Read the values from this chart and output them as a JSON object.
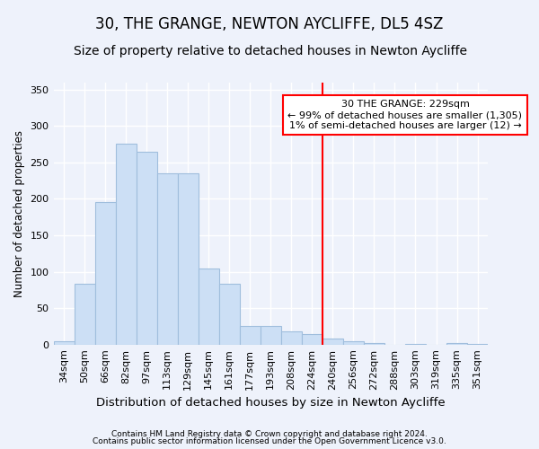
{
  "title": "30, THE GRANGE, NEWTON AYCLIFFE, DL5 4SZ",
  "subtitle": "Size of property relative to detached houses in Newton Aycliffe",
  "xlabel": "Distribution of detached houses by size in Newton Aycliffe",
  "ylabel": "Number of detached properties",
  "footer_line1": "Contains HM Land Registry data © Crown copyright and database right 2024.",
  "footer_line2": "Contains public sector information licensed under the Open Government Licence v3.0.",
  "bar_labels": [
    "34sqm",
    "50sqm",
    "66sqm",
    "82sqm",
    "97sqm",
    "113sqm",
    "129sqm",
    "145sqm",
    "161sqm",
    "177sqm",
    "193sqm",
    "208sqm",
    "224sqm",
    "240sqm",
    "256sqm",
    "272sqm",
    "288sqm",
    "303sqm",
    "319sqm",
    "335sqm",
    "351sqm"
  ],
  "bar_values": [
    5,
    83,
    196,
    276,
    265,
    235,
    235,
    104,
    83,
    25,
    25,
    18,
    14,
    8,
    4,
    2,
    0,
    1,
    0,
    2,
    1
  ],
  "bar_color": "#ccdff5",
  "bar_edgecolor": "#a0bedd",
  "bg_color": "#eef2fb",
  "grid_color": "#ffffff",
  "vline_color": "red",
  "annotation_text": "30 THE GRANGE: 229sqm\n← 99% of detached houses are smaller (1,305)\n1% of semi-detached houses are larger (12) →",
  "ylim": [
    0,
    360
  ],
  "yticks": [
    0,
    50,
    100,
    150,
    200,
    250,
    300,
    350
  ],
  "title_fontsize": 12,
  "subtitle_fontsize": 10,
  "xlabel_fontsize": 9.5,
  "ylabel_fontsize": 8.5,
  "tick_fontsize": 8,
  "annotation_fontsize": 8,
  "footer_fontsize": 6.5
}
